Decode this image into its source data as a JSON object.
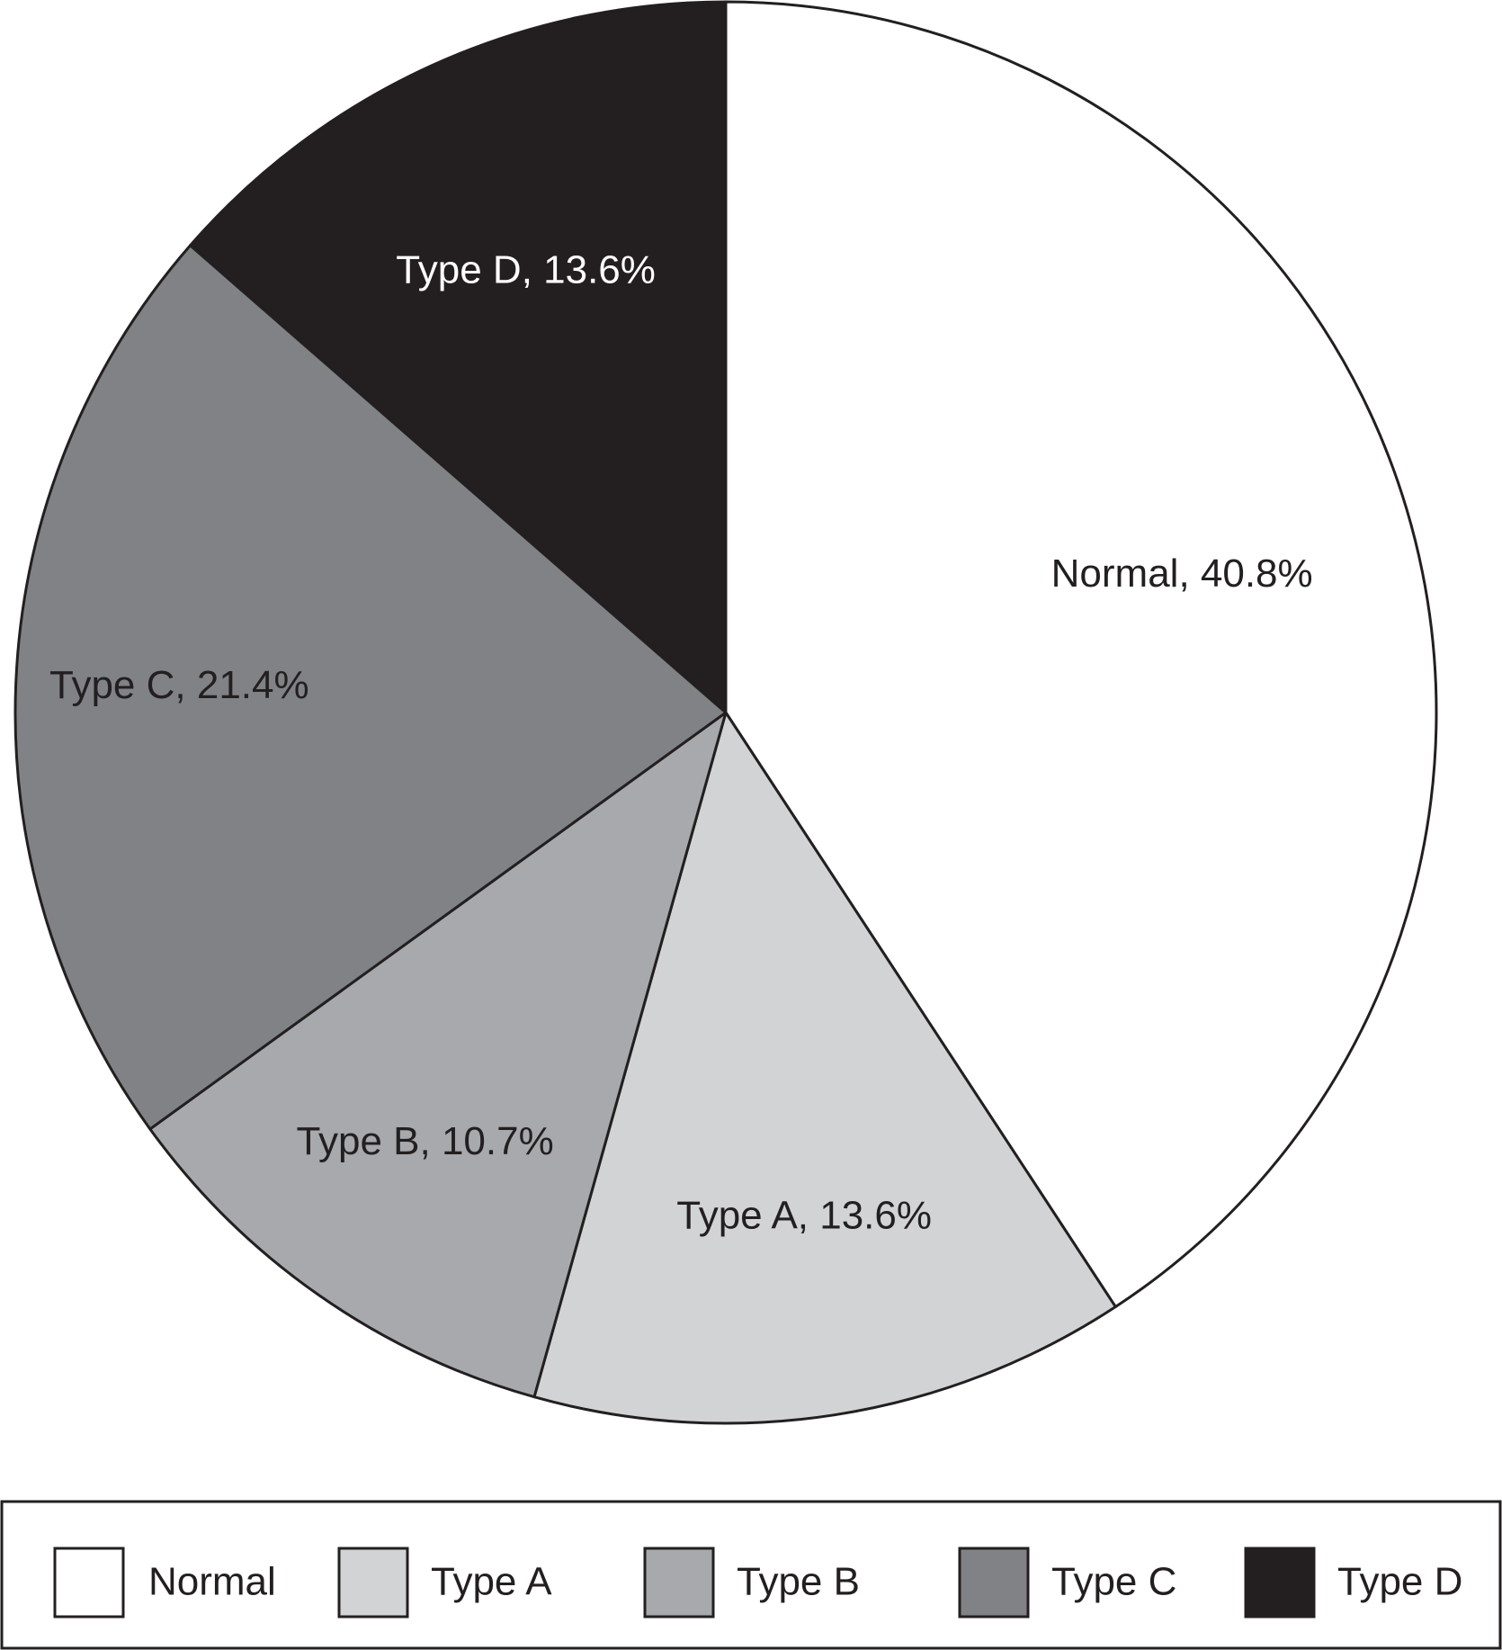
{
  "chart_data": {
    "type": "pie",
    "start_angle_deg": 0,
    "direction": "clockwise",
    "slices": [
      {
        "name": "Normal",
        "value": 40.8,
        "label": "Normal, 40.8%",
        "color": "#ffffff",
        "label_color": "#231f20"
      },
      {
        "name": "Type A",
        "value": 13.6,
        "label": "Type A, 13.6%",
        "color": "#d1d3d4",
        "label_color": "#231f20"
      },
      {
        "name": "Type B",
        "value": 10.7,
        "label": "Type B, 10.7%",
        "color": "#a7a9ac",
        "label_color": "#231f20"
      },
      {
        "name": "Type C",
        "value": 21.4,
        "label": "Type C, 21.4%",
        "color": "#808285",
        "label_color": "#231f20"
      },
      {
        "name": "Type D",
        "value": 13.6,
        "label": "Type D, 13.6%",
        "color": "#231f20",
        "label_color": "#ffffff"
      }
    ],
    "legend": {
      "position": "bottom",
      "entries": [
        "Normal",
        "Type A",
        "Type B",
        "Type C",
        "Type D"
      ]
    },
    "outline_color": "#231f20"
  }
}
